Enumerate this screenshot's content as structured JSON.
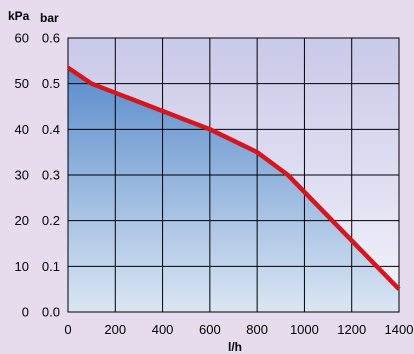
{
  "chart_data": {
    "type": "area",
    "title": "",
    "xlabel": "l/h",
    "ylabel_left": "kPa",
    "ylabel_right": "bar",
    "x_ticks": [
      "0",
      "200",
      "400",
      "600",
      "800",
      "1000",
      "1200",
      "1400"
    ],
    "y_ticks_kpa": [
      "0",
      "10",
      "20",
      "30",
      "40",
      "50",
      "60"
    ],
    "y_ticks_bar": [
      "0.0",
      "0.1",
      "0.2",
      "0.3",
      "0.4",
      "0.5",
      "0.6"
    ],
    "xlim": [
      0,
      1400
    ],
    "ylim": [
      0,
      0.6
    ],
    "grid": true,
    "colors": {
      "background": "#e6dced",
      "line": "#d8141c",
      "fill_top": "#5a8ccb",
      "fill_bottom": "#dbe6f4",
      "plot_top": "#c9c9e9",
      "plot_bottom": "#f4f3fb",
      "grid": "#000000"
    },
    "series": [
      {
        "x": [
          0,
          100,
          600,
          800,
          930,
          1400
        ],
        "y": [
          0.535,
          0.5,
          0.4,
          0.35,
          0.3,
          0.05
        ]
      }
    ]
  }
}
